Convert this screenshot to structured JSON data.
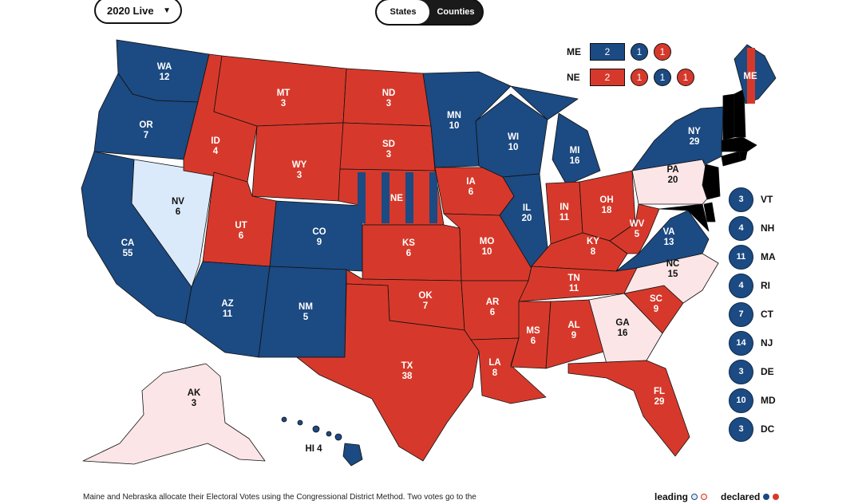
{
  "controls": {
    "year_select": "2020 Live",
    "toggle": [
      "States",
      "Counties"
    ],
    "toggle_active": "States"
  },
  "colors": {
    "dem_declared": "#1c4a82",
    "rep_declared": "#d6392b",
    "dem_leading": "#dbeafb",
    "rep_leading": "#fbe5e7"
  },
  "states": [
    {
      "code": "WA",
      "ev": "12",
      "status": "dem_declared"
    },
    {
      "code": "OR",
      "ev": "7",
      "status": "dem_declared"
    },
    {
      "code": "CA",
      "ev": "55",
      "status": "dem_declared"
    },
    {
      "code": "NV",
      "ev": "6",
      "status": "dem_leading"
    },
    {
      "code": "ID",
      "ev": "4",
      "status": "rep_declared"
    },
    {
      "code": "MT",
      "ev": "3",
      "status": "rep_declared"
    },
    {
      "code": "WY",
      "ev": "3",
      "status": "rep_declared"
    },
    {
      "code": "UT",
      "ev": "6",
      "status": "rep_declared"
    },
    {
      "code": "AZ",
      "ev": "11",
      "status": "dem_declared"
    },
    {
      "code": "CO",
      "ev": "9",
      "status": "dem_declared"
    },
    {
      "code": "NM",
      "ev": "5",
      "status": "dem_declared"
    },
    {
      "code": "ND",
      "ev": "3",
      "status": "rep_declared"
    },
    {
      "code": "SD",
      "ev": "3",
      "status": "rep_declared"
    },
    {
      "code": "NE",
      "ev": "",
      "status": "split"
    },
    {
      "code": "KS",
      "ev": "6",
      "status": "rep_declared"
    },
    {
      "code": "OK",
      "ev": "7",
      "status": "rep_declared"
    },
    {
      "code": "TX",
      "ev": "38",
      "status": "rep_declared"
    },
    {
      "code": "MN",
      "ev": "10",
      "status": "dem_declared"
    },
    {
      "code": "IA",
      "ev": "6",
      "status": "rep_declared"
    },
    {
      "code": "MO",
      "ev": "10",
      "status": "rep_declared"
    },
    {
      "code": "AR",
      "ev": "6",
      "status": "rep_declared"
    },
    {
      "code": "LA",
      "ev": "8",
      "status": "rep_declared"
    },
    {
      "code": "WI",
      "ev": "10",
      "status": "dem_declared"
    },
    {
      "code": "IL",
      "ev": "20",
      "status": "dem_declared"
    },
    {
      "code": "MI",
      "ev": "16",
      "status": "dem_declared"
    },
    {
      "code": "IN",
      "ev": "11",
      "status": "rep_declared"
    },
    {
      "code": "OH",
      "ev": "18",
      "status": "rep_declared"
    },
    {
      "code": "KY",
      "ev": "8",
      "status": "rep_declared"
    },
    {
      "code": "TN",
      "ev": "11",
      "status": "rep_declared"
    },
    {
      "code": "MS",
      "ev": "6",
      "status": "rep_declared"
    },
    {
      "code": "AL",
      "ev": "9",
      "status": "rep_declared"
    },
    {
      "code": "GA",
      "ev": "16",
      "status": "rep_leading"
    },
    {
      "code": "FL",
      "ev": "29",
      "status": "rep_declared"
    },
    {
      "code": "SC",
      "ev": "9",
      "status": "rep_declared"
    },
    {
      "code": "NC",
      "ev": "15",
      "status": "rep_leading"
    },
    {
      "code": "VA",
      "ev": "13",
      "status": "dem_declared"
    },
    {
      "code": "WV",
      "ev": "5",
      "status": "rep_declared"
    },
    {
      "code": "PA",
      "ev": "20",
      "status": "rep_leading"
    },
    {
      "code": "NY",
      "ev": "29",
      "status": "dem_declared"
    },
    {
      "code": "ME",
      "ev": "",
      "status": "split"
    },
    {
      "code": "AK",
      "ev": "3",
      "status": "rep_leading"
    },
    {
      "code": "HI",
      "ev": "4",
      "status": "dem_declared"
    }
  ],
  "splits": [
    {
      "code": "ME",
      "statewide": "2",
      "statewide_party": "blue",
      "districts": [
        {
          "value": "1",
          "party": "blue"
        },
        {
          "value": "1",
          "party": "red"
        }
      ]
    },
    {
      "code": "NE",
      "statewide": "2",
      "statewide_party": "red",
      "districts": [
        {
          "value": "1",
          "party": "red"
        },
        {
          "value": "1",
          "party": "blue"
        },
        {
          "value": "1",
          "party": "red"
        }
      ]
    }
  ],
  "small_states": [
    {
      "code": "VT",
      "ev": "3"
    },
    {
      "code": "NH",
      "ev": "4"
    },
    {
      "code": "MA",
      "ev": "11"
    },
    {
      "code": "RI",
      "ev": "4"
    },
    {
      "code": "CT",
      "ev": "7"
    },
    {
      "code": "NJ",
      "ev": "14"
    },
    {
      "code": "DE",
      "ev": "3"
    },
    {
      "code": "MD",
      "ev": "10"
    },
    {
      "code": "DC",
      "ev": "3"
    }
  ],
  "footnote": "Maine and Nebraska allocate their Electoral Votes using the Congressional District Method. Two votes go to the",
  "legend": {
    "leading": "leading",
    "declared": "declared"
  }
}
